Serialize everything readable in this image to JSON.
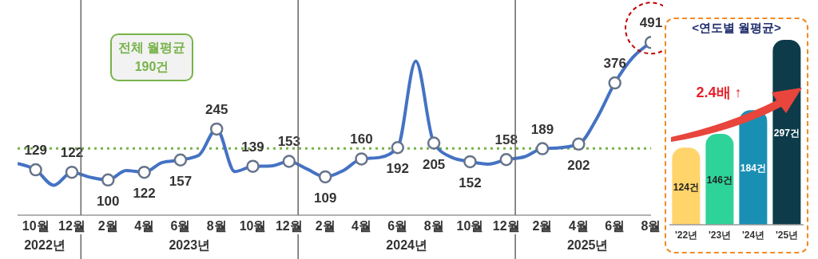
{
  "chart_data": [
    {
      "type": "line",
      "color": "#4472c4",
      "marker": "circle",
      "x": [
        "2022-09",
        "2022-10",
        "2022-11",
        "2022-12",
        "2023-01",
        "2023-02",
        "2023-03",
        "2023-04",
        "2023-05",
        "2023-06",
        "2023-07",
        "2023-08",
        "2023-09",
        "2023-10",
        "2023-11",
        "2023-12",
        "2024-01",
        "2024-02",
        "2024-03",
        "2024-04",
        "2024-05",
        "2024-06",
        "2024-07",
        "2024-08",
        "2024-09",
        "2024-10",
        "2024-11",
        "2024-12",
        "2025-01",
        "2025-02",
        "2025-03",
        "2025-04",
        "2025-05",
        "2025-06",
        "2025-07",
        "2025-08"
      ],
      "values": [
        147,
        129,
        85,
        122,
        108,
        100,
        127,
        122,
        150,
        157,
        170,
        245,
        124,
        139,
        140,
        153,
        131,
        109,
        127,
        160,
        164,
        192,
        438,
        205,
        164,
        152,
        145,
        158,
        166,
        189,
        192,
        202,
        275,
        376,
        449,
        491
      ],
      "value_labels": [
        null,
        "129",
        null,
        "122",
        null,
        "100",
        null,
        "122",
        null,
        "157",
        null,
        "245",
        null,
        "139",
        null,
        "153",
        null,
        "109",
        null,
        "160",
        null,
        "192",
        null,
        "205",
        null,
        "152",
        null,
        "158",
        null,
        "189",
        null,
        "202",
        null,
        "376",
        null,
        "491"
      ],
      "xlim": [
        "2022-09",
        "2025-08"
      ],
      "xticks": [
        {
          "value": "2022-10",
          "label": "10월"
        },
        {
          "value": "2022-12",
          "label": "12월"
        },
        {
          "value": "2023-02",
          "label": "2월"
        },
        {
          "value": "2023-04",
          "label": "4월"
        },
        {
          "value": "2023-06",
          "label": "6월"
        },
        {
          "value": "2023-08",
          "label": "8월"
        },
        {
          "value": "2023-10",
          "label": "10월"
        },
        {
          "value": "2023-12",
          "label": "12월"
        },
        {
          "value": "2024-02",
          "label": "2월"
        },
        {
          "value": "2024-04",
          "label": "4월"
        },
        {
          "value": "2024-06",
          "label": "6월"
        },
        {
          "value": "2024-08",
          "label": "8월"
        },
        {
          "value": "2024-10",
          "label": "10월"
        },
        {
          "value": "2024-12",
          "label": "12월"
        },
        {
          "value": "2025-02",
          "label": "2월"
        },
        {
          "value": "2025-04",
          "label": "4월"
        },
        {
          "value": "2025-06",
          "label": "6월"
        },
        {
          "value": "2025-08",
          "label": "8월"
        }
      ],
      "annotations": [
        "2022년",
        "2023년",
        "2024년",
        "2025년"
      ],
      "ref_lines": [
        {
          "axis": "y",
          "value": 190,
          "label": "전체 월평균\n190건",
          "color": "#77b34a",
          "line_style": "dotted"
        }
      ]
    },
    {
      "type": "bar",
      "title": "<연도별 월평균>",
      "categories": [
        "'22년",
        "'23년",
        "'24년",
        "'25년"
      ],
      "values": [
        124,
        146,
        184,
        297
      ],
      "colors": [
        "#ffd46b",
        "#2ed39a",
        "#1a8fb4",
        "#0d3b4a"
      ],
      "value_labels": [
        "124건",
        "146건",
        "184건",
        "297건"
      ],
      "annotations": [
        "2.4배 ↑"
      ]
    }
  ]
}
